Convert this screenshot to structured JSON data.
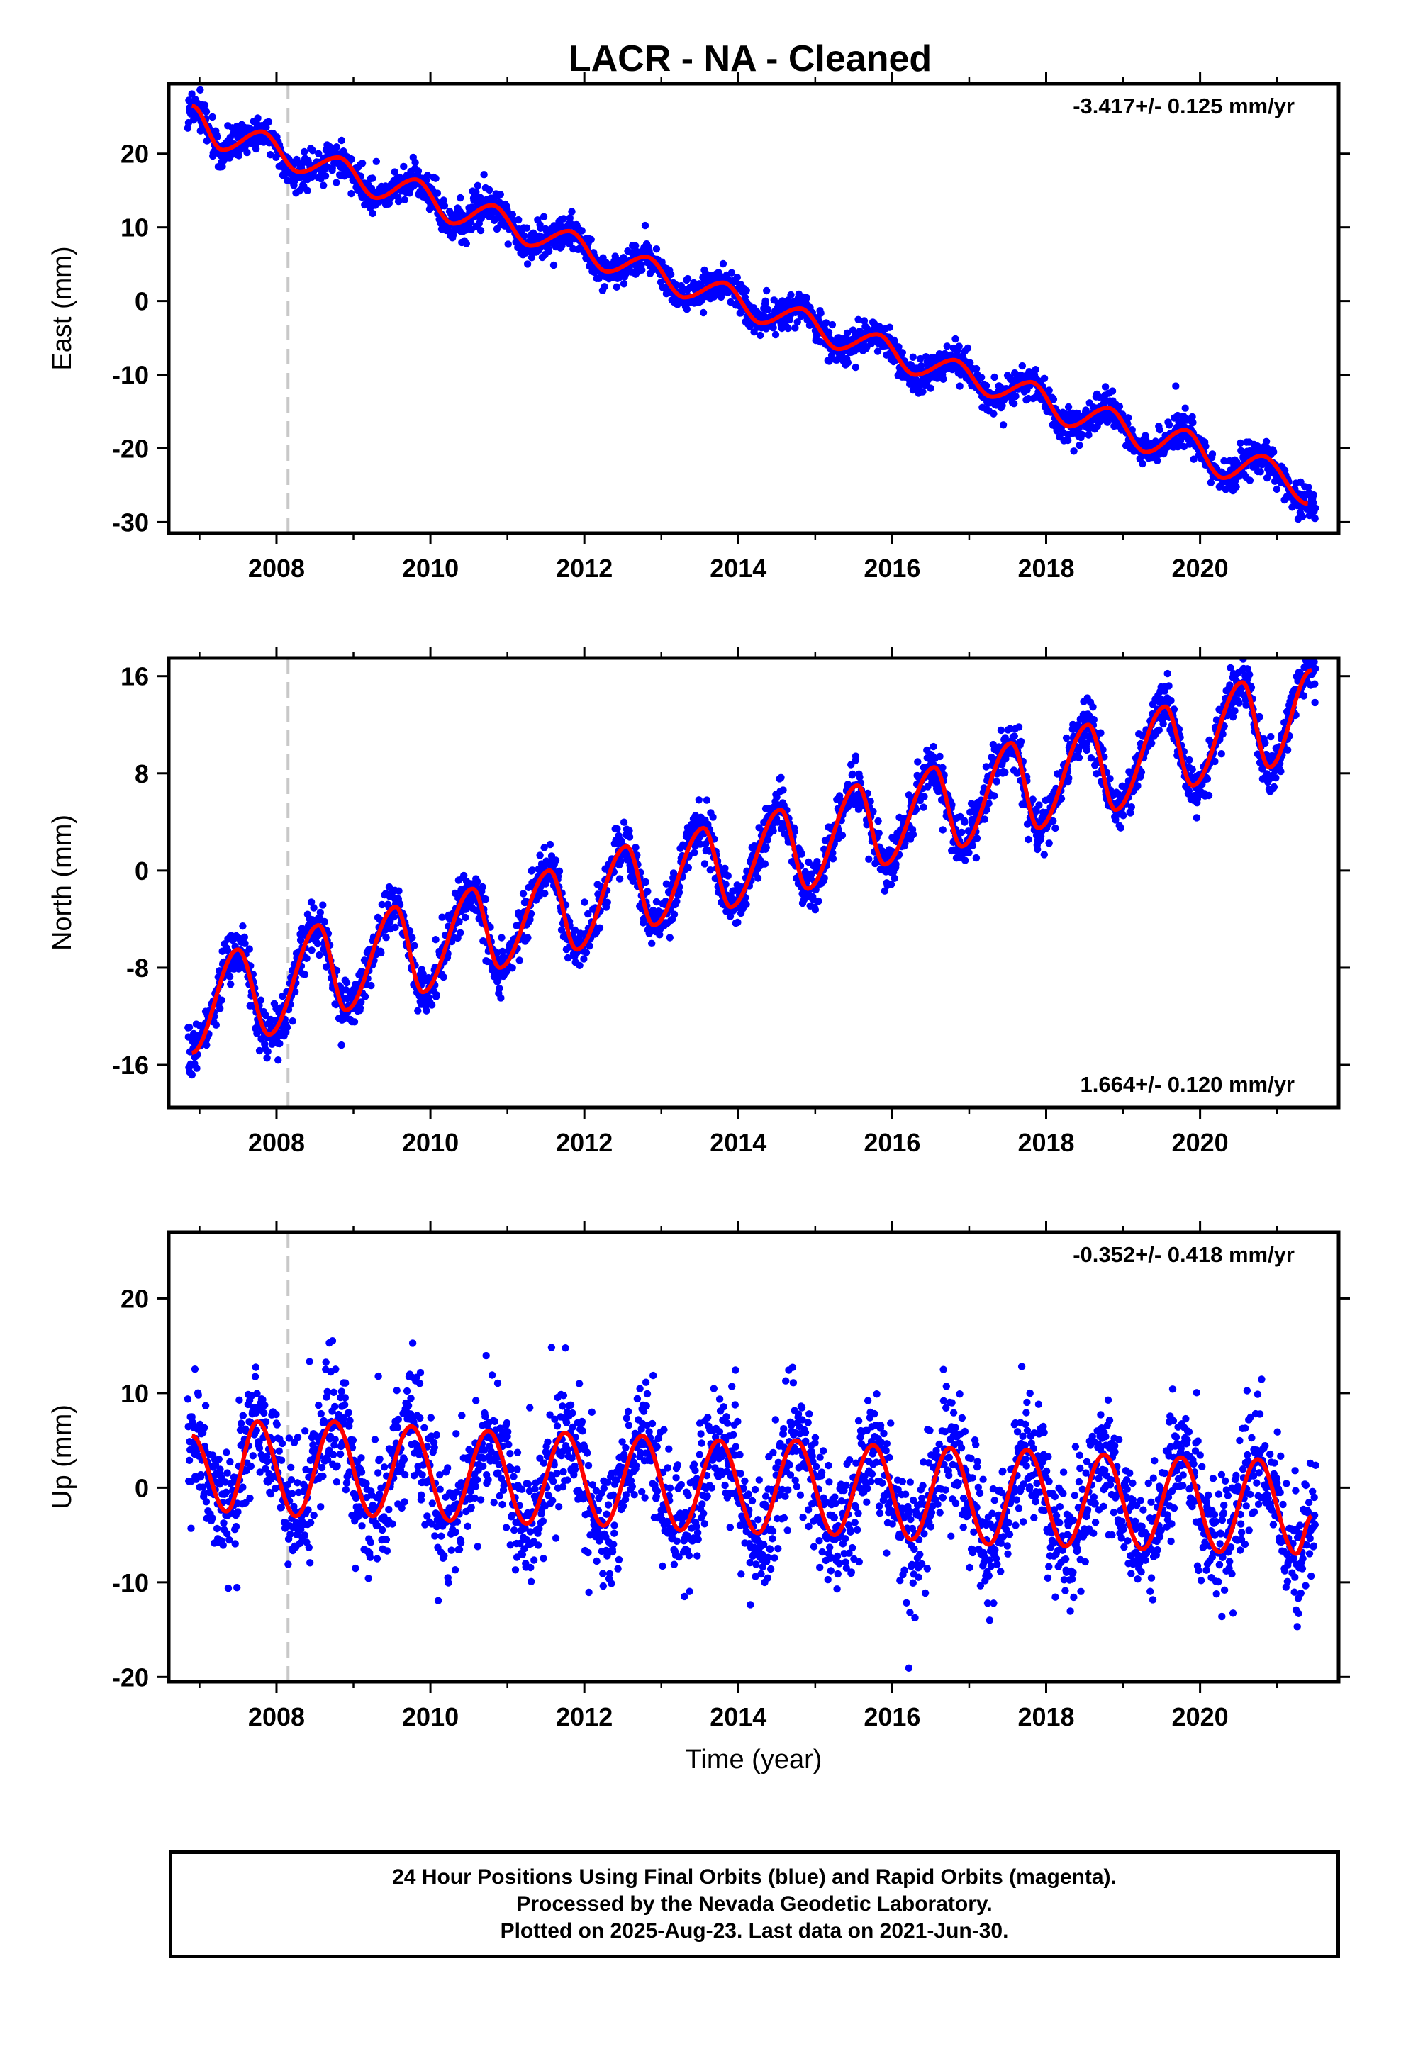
{
  "title": "LACR  - NA - Cleaned",
  "colors": {
    "points": "#0000ff",
    "fit": "#ff0000",
    "marker_line": "#c8c8c8",
    "frame": "#000000"
  },
  "footer": {
    "line1": "24 Hour Positions Using Final Orbits (blue) and Rapid Orbits (magenta).",
    "line2": "Processed by the Nevada Geodetic Laboratory.",
    "line3": "Plotted on 2025-Aug-23. Last data on 2021-Jun-30."
  },
  "chart_data": [
    {
      "type": "scatter",
      "name": "east",
      "ylabel": "East (mm)",
      "xlabel": "",
      "xlim": [
        2006.6,
        2021.8
      ],
      "ylim": [
        -31.5,
        29.5
      ],
      "xticks": [
        2008,
        2010,
        2012,
        2014,
        2016,
        2018,
        2020
      ],
      "yticks": [
        -30,
        -20,
        -10,
        0,
        10,
        20
      ],
      "annotation": "-3.417+/- 0.125 mm/yr",
      "annotation_position": "top-right",
      "rate_mm_per_yr": -3.417,
      "marker_line_x": 2008.15,
      "data_range": [
        2006.85,
        2021.5
      ],
      "fit_curve": {
        "x": [
          2006.9,
          2007.3,
          2007.8,
          2008.3,
          2008.8,
          2009.3,
          2009.8,
          2010.3,
          2010.8,
          2011.3,
          2011.8,
          2012.3,
          2012.8,
          2013.3,
          2013.8,
          2014.3,
          2014.8,
          2015.3,
          2015.8,
          2016.3,
          2016.8,
          2017.3,
          2017.8,
          2018.3,
          2018.8,
          2019.3,
          2019.8,
          2020.3,
          2020.8,
          2021.4
        ],
        "y": [
          26.5,
          20.5,
          23.0,
          17.5,
          19.5,
          14.0,
          16.5,
          10.5,
          13.0,
          7.5,
          9.5,
          4.0,
          6.0,
          0.5,
          2.5,
          -3.0,
          -1.0,
          -6.5,
          -4.5,
          -10.0,
          -8.0,
          -13.0,
          -11.0,
          -17.0,
          -14.5,
          -20.5,
          -17.5,
          -24.0,
          -21.0,
          -27.5
        ]
      }
    },
    {
      "type": "scatter",
      "name": "north",
      "ylabel": "North (mm)",
      "xlabel": "",
      "xlim": [
        2006.6,
        2021.8
      ],
      "ylim": [
        -19.5,
        17.5
      ],
      "xticks": [
        2008,
        2010,
        2012,
        2014,
        2016,
        2018,
        2020
      ],
      "yticks": [
        -16,
        -8,
        0,
        8,
        16
      ],
      "annotation": "1.664+/- 0.120 mm/yr",
      "annotation_position": "bottom-right",
      "rate_mm_per_yr": 1.664,
      "marker_line_x": 2008.15,
      "data_range": [
        2006.85,
        2021.5
      ],
      "fit_curve": {
        "x": [
          2006.9,
          2007.5,
          2007.9,
          2008.55,
          2008.9,
          2009.55,
          2009.9,
          2010.55,
          2010.9,
          2011.55,
          2011.9,
          2012.55,
          2012.9,
          2013.55,
          2013.9,
          2014.55,
          2014.9,
          2015.55,
          2015.9,
          2016.55,
          2016.9,
          2017.55,
          2017.9,
          2018.55,
          2018.9,
          2019.55,
          2019.9,
          2020.55,
          2020.9,
          2021.45
        ],
        "y": [
          -15.0,
          -6.5,
          -13.5,
          -4.5,
          -11.5,
          -3.0,
          -10.0,
          -1.5,
          -8.0,
          0.0,
          -6.5,
          2.0,
          -4.5,
          3.5,
          -3.0,
          5.0,
          -1.5,
          7.0,
          0.5,
          8.5,
          2.0,
          10.5,
          3.5,
          12.0,
          5.0,
          13.5,
          7.0,
          15.5,
          8.5,
          16.5
        ]
      }
    },
    {
      "type": "scatter",
      "name": "up",
      "ylabel": "Up (mm)",
      "xlabel": "Time (year)",
      "xlim": [
        2006.6,
        2021.8
      ],
      "ylim": [
        -20.5,
        27.0
      ],
      "xticks": [
        2008,
        2010,
        2012,
        2014,
        2016,
        2018,
        2020
      ],
      "yticks": [
        -20,
        -10,
        0,
        10,
        20
      ],
      "annotation": "-0.352+/- 0.418 mm/yr",
      "annotation_position": "top-right",
      "rate_mm_per_yr": -0.352,
      "marker_line_x": 2008.15,
      "data_range": [
        2006.85,
        2021.5
      ],
      "fit_curve": {
        "x": [
          2006.9,
          2007.35,
          2007.75,
          2008.25,
          2008.75,
          2009.25,
          2009.75,
          2010.25,
          2010.75,
          2011.25,
          2011.75,
          2012.25,
          2012.75,
          2013.25,
          2013.75,
          2014.25,
          2014.75,
          2015.25,
          2015.75,
          2016.25,
          2016.75,
          2017.25,
          2017.75,
          2018.25,
          2018.75,
          2019.25,
          2019.75,
          2020.25,
          2020.75,
          2021.25,
          2021.45
        ],
        "y": [
          5.5,
          -2.5,
          7.0,
          -3.0,
          7.0,
          -3.0,
          6.5,
          -3.5,
          6.0,
          -3.8,
          5.8,
          -4.0,
          5.5,
          -4.5,
          5.0,
          -4.8,
          5.0,
          -5.0,
          4.5,
          -5.5,
          4.2,
          -6.0,
          4.0,
          -6.2,
          3.5,
          -6.5,
          3.2,
          -6.8,
          3.0,
          -7.0,
          -3.0
        ]
      }
    }
  ]
}
